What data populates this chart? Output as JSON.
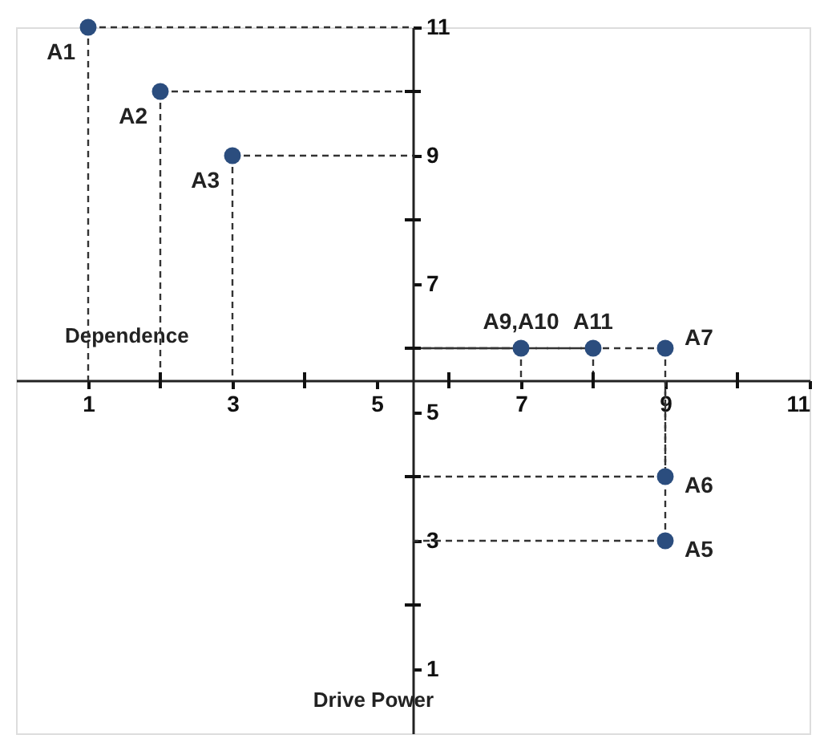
{
  "chart_data": {
    "type": "scatter",
    "xlabel": "Dependence",
    "ylabel": "Drive Power",
    "x": [
      1,
      2,
      3,
      7,
      8,
      9,
      9,
      9
    ],
    "series": [
      {
        "color": "#2b4d7e",
        "values": [
          11,
          10,
          9,
          6,
          6,
          6,
          4,
          3
        ]
      }
    ],
    "annotations": [
      {
        "text": "A1",
        "x": 1,
        "y": 11
      },
      {
        "text": "A2",
        "x": 2,
        "y": 10
      },
      {
        "text": "A3",
        "x": 3,
        "y": 9
      },
      {
        "text": "A9,A10",
        "x": 7,
        "y": 6
      },
      {
        "text": "A11",
        "x": 8,
        "y": 6
      },
      {
        "text": "A7",
        "x": 9,
        "y": 6
      },
      {
        "text": "A6",
        "x": 9,
        "y": 4
      },
      {
        "text": "A5",
        "x": 9,
        "y": 3
      }
    ],
    "xlim": [
      0,
      11
    ],
    "ylim": [
      0,
      11
    ],
    "xticks": [
      1,
      3,
      5,
      7,
      9,
      11
    ],
    "yticks": [
      1,
      3,
      5,
      7,
      9,
      11
    ],
    "grid": false,
    "marker": "circle",
    "line_style": "dashed"
  }
}
